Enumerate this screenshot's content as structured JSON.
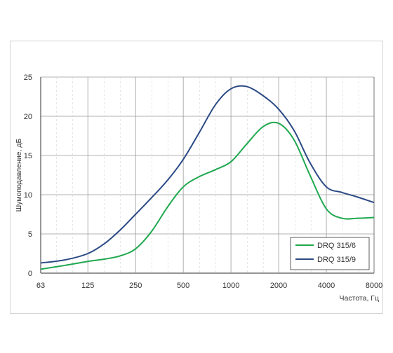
{
  "chart_data": {
    "type": "line",
    "x_scale": "log2",
    "x_ticks": [
      63,
      125,
      250,
      500,
      1000,
      2000,
      4000,
      8000
    ],
    "x_tick_labels": [
      "63",
      "125",
      "250",
      "500",
      "1000",
      "2000",
      "4000",
      "8000"
    ],
    "y_ticks": [
      0,
      5,
      10,
      15,
      20,
      25
    ],
    "y_tick_labels": [
      "0",
      "5",
      "10",
      "15",
      "20",
      "25"
    ],
    "xlim": [
      63,
      8000
    ],
    "ylim": [
      0,
      25
    ],
    "xlabel": "Частота, Гц",
    "ylabel": "Шумоподавление, дБ",
    "grid": true,
    "legend_position": "bottom-right",
    "series": [
      {
        "name": "DRQ 315/6",
        "color": "#1fa84f",
        "points": [
          [
            63,
            0.5
          ],
          [
            90,
            1.0
          ],
          [
            125,
            1.5
          ],
          [
            160,
            1.8
          ],
          [
            200,
            2.2
          ],
          [
            250,
            3.1
          ],
          [
            315,
            5.3
          ],
          [
            400,
            8.5
          ],
          [
            500,
            11.0
          ],
          [
            630,
            12.3
          ],
          [
            800,
            13.2
          ],
          [
            1000,
            14.2
          ],
          [
            1250,
            16.4
          ],
          [
            1600,
            18.7
          ],
          [
            2000,
            19.1
          ],
          [
            2500,
            17.0
          ],
          [
            3150,
            12.5
          ],
          [
            4000,
            8.2
          ],
          [
            5000,
            7.0
          ],
          [
            6300,
            7.0
          ],
          [
            8000,
            7.1
          ]
        ]
      },
      {
        "name": "DRQ 315/9",
        "color": "#2b4a85",
        "points": [
          [
            63,
            1.3
          ],
          [
            90,
            1.7
          ],
          [
            125,
            2.5
          ],
          [
            160,
            3.8
          ],
          [
            200,
            5.5
          ],
          [
            250,
            7.5
          ],
          [
            315,
            9.6
          ],
          [
            400,
            11.9
          ],
          [
            500,
            14.5
          ],
          [
            630,
            17.9
          ],
          [
            800,
            21.5
          ],
          [
            1000,
            23.5
          ],
          [
            1250,
            23.8
          ],
          [
            1600,
            22.6
          ],
          [
            2000,
            20.9
          ],
          [
            2500,
            18.2
          ],
          [
            3150,
            14.1
          ],
          [
            4000,
            11.0
          ],
          [
            5000,
            10.3
          ],
          [
            6300,
            9.7
          ],
          [
            8000,
            9.0
          ]
        ]
      }
    ]
  }
}
